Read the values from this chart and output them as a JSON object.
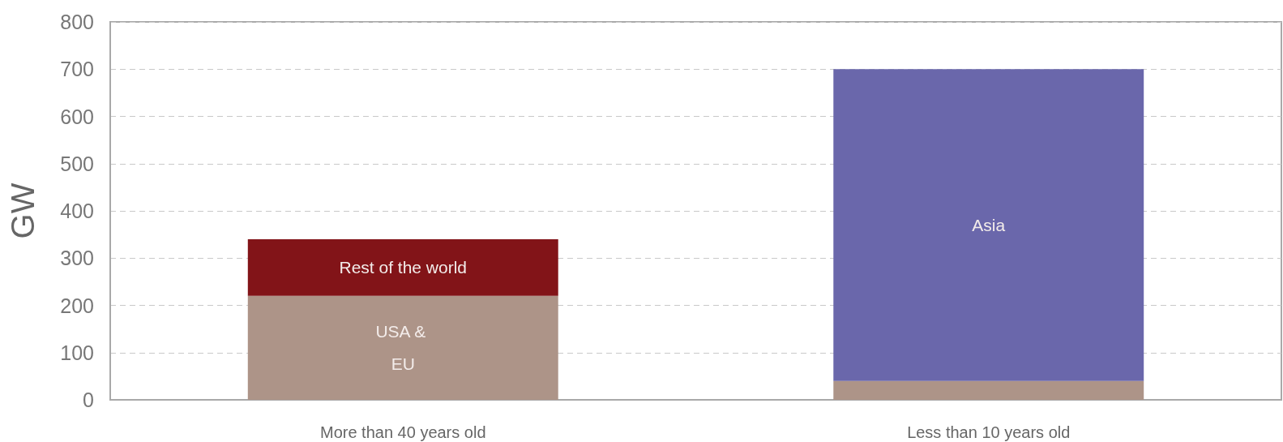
{
  "chart_data": {
    "type": "bar",
    "categories": [
      "More than 40 years old",
      "Less than 10 years old"
    ],
    "ylabel": "GW",
    "stacked": true,
    "ylim": [
      0,
      800
    ],
    "yticks": [
      0,
      100,
      200,
      300,
      400,
      500,
      600,
      700,
      800
    ],
    "grid": "y",
    "series": [
      {
        "name": "USA & EU",
        "color": "#ad9488",
        "values": [
          220,
          40
        ]
      },
      {
        "name": "Rest of the world",
        "color": "#821418",
        "values": [
          120,
          null
        ]
      },
      {
        "name": "Asia",
        "color": "#6a67ab",
        "values": [
          null,
          660
        ]
      }
    ]
  }
}
